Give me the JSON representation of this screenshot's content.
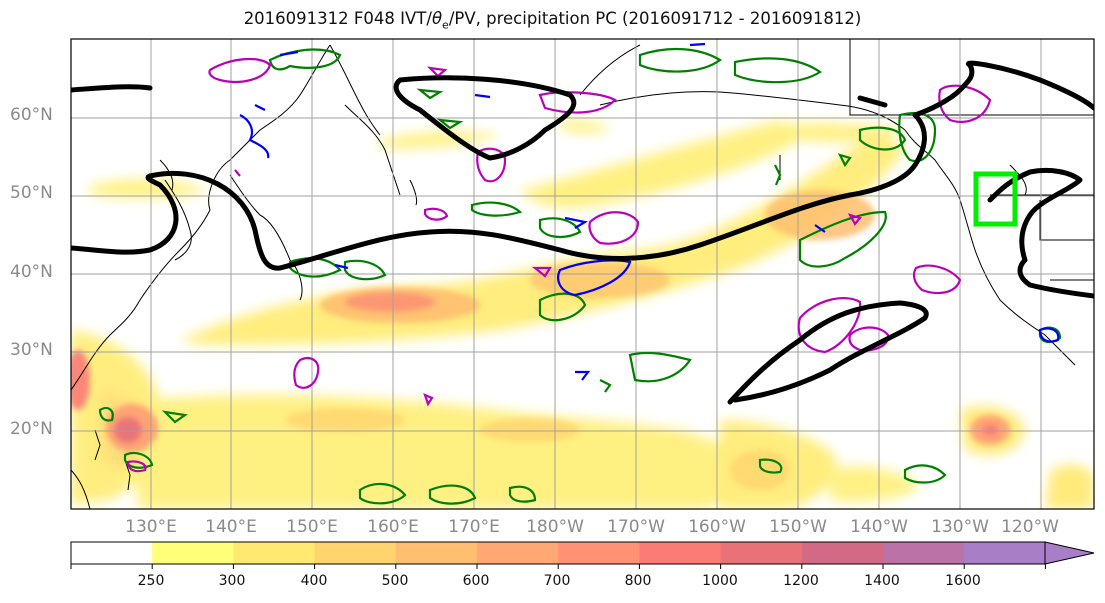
{
  "title": {
    "prefix": "2016091312 F048 IVT/",
    "theta": "θ",
    "theta_sub": "e",
    "suffix": "/PV, precipitation PC (2016091712 - 2016091812)"
  },
  "axes": {
    "lat_labels": [
      "60°N",
      "50°N",
      "40°N",
      "30°N",
      "20°N"
    ],
    "lon_labels": [
      "130°E",
      "140°E",
      "150°E",
      "160°E",
      "170°E",
      "180°W",
      "170°W",
      "160°W",
      "150°W",
      "140°W",
      "130°W",
      "120°W"
    ]
  },
  "colorbar": {
    "levels": [
      "250",
      "300",
      "400",
      "500",
      "600",
      "700",
      "800",
      "1000",
      "1200",
      "1400",
      "1600"
    ],
    "colors": [
      "#ffffff",
      "#ffff7a",
      "#ffe970",
      "#ffd46e",
      "#ffbe70",
      "#ffa874",
      "#ff9174",
      "#fb7b76",
      "#e87278",
      "#d26a86",
      "#bb72a6",
      "#a97ec8"
    ]
  },
  "contour_colors": {
    "ivt_line": "#000000",
    "thetae": "#008000",
    "pv_negative": "#0000ff",
    "pv_positive": "#bb00bb",
    "target_box": "#00ee00"
  }
}
